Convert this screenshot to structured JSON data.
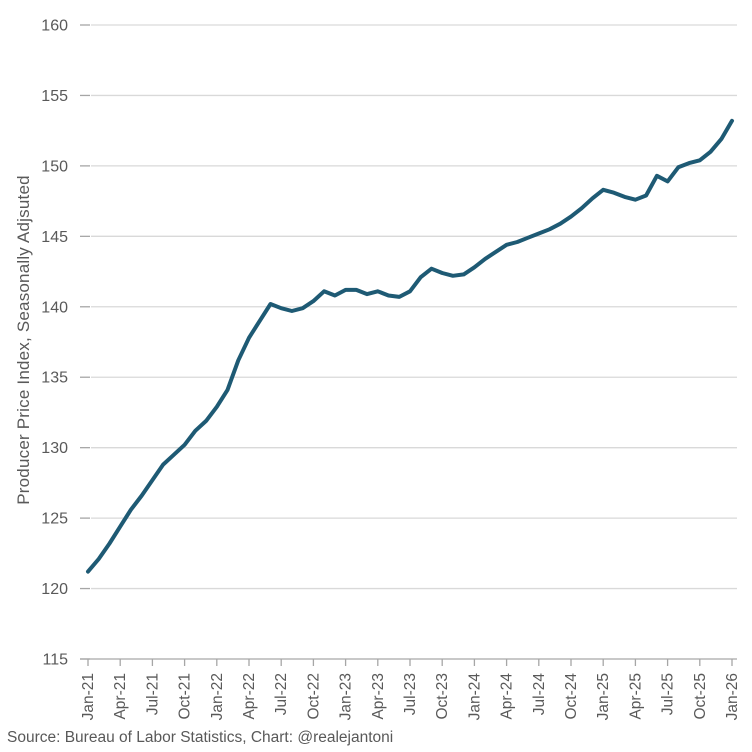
{
  "source_note": "Source: Bureau of Labor Statistics, Chart: @realejantoni",
  "chart_data": {
    "type": "line",
    "title": "",
    "xlabel": "",
    "ylabel": "Producer Price Index, Seasonally Adjsuted",
    "ylim": [
      115,
      160
    ],
    "ytick_step": 5,
    "x_tick_every": 3,
    "grid": "horizontal",
    "legend": "none",
    "x": [
      "Jan-21",
      "Feb-21",
      "Mar-21",
      "Apr-21",
      "May-21",
      "Jun-21",
      "Jul-21",
      "Aug-21",
      "Sep-21",
      "Oct-21",
      "Nov-21",
      "Dec-21",
      "Jan-22",
      "Feb-22",
      "Mar-22",
      "Apr-22",
      "May-22",
      "Jun-22",
      "Jul-22",
      "Aug-22",
      "Sep-22",
      "Oct-22",
      "Nov-22",
      "Dec-22",
      "Jan-23",
      "Feb-23",
      "Mar-23",
      "Apr-23",
      "May-23",
      "Jun-23",
      "Jul-23",
      "Aug-23",
      "Sep-23",
      "Oct-23",
      "Nov-23",
      "Dec-23",
      "Jan-24",
      "Feb-24",
      "Mar-24",
      "Apr-24",
      "May-24",
      "Jun-24",
      "Jul-24",
      "Aug-24",
      "Sep-24",
      "Oct-24",
      "Nov-24",
      "Dec-24",
      "Jan-25",
      "Feb-25",
      "Mar-25",
      "Apr-25",
      "May-25",
      "Jun-25",
      "Jul-25",
      "Aug-25",
      "Sep-25",
      "Oct-25",
      "Nov-25",
      "Dec-25",
      "Jan-26"
    ],
    "values": [
      121.2,
      122.1,
      123.2,
      124.4,
      125.6,
      126.6,
      127.7,
      128.8,
      129.5,
      130.2,
      131.2,
      131.9,
      132.9,
      134.1,
      136.2,
      137.8,
      139.0,
      140.2,
      139.9,
      139.7,
      139.9,
      140.4,
      141.1,
      140.8,
      141.2,
      141.2,
      140.9,
      141.1,
      140.8,
      140.7,
      141.1,
      142.1,
      142.7,
      142.4,
      142.2,
      142.3,
      142.8,
      143.4,
      143.9,
      144.4,
      144.6,
      144.9,
      145.2,
      145.5,
      145.9,
      146.4,
      147.0,
      147.7,
      148.3,
      148.1,
      147.8,
      147.6,
      147.9,
      149.3,
      148.9,
      149.9,
      150.2,
      150.4,
      151.0,
      151.9,
      153.2
    ],
    "colors": {
      "line": "#1E5A74",
      "gridline": "#D9D9D9",
      "axis": "#A6A6A6",
      "tick": "#A6A6A6",
      "text": "#595959"
    }
  }
}
